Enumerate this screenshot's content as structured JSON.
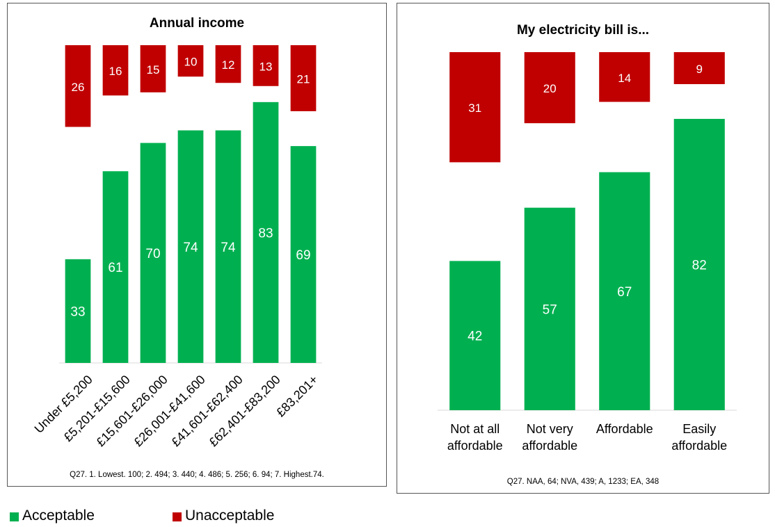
{
  "colors": {
    "acceptable": "#00B050",
    "unacceptable": "#C00000"
  },
  "legend": {
    "items": [
      {
        "label": "Acceptable",
        "color": "#00B050"
      },
      {
        "label": "Unacceptable",
        "color": "#C00000"
      }
    ]
  },
  "chart_data": [
    {
      "type": "bar",
      "title": "Annual income",
      "note": "Q27.  1. Lowest. 100; 2. 494; 3. 440; 4. 486; 5. 256; 6. 94; 7. Highest.74.",
      "categories": [
        "Under £5,200",
        "£5,201-£15,600",
        "£15,601-£26,000",
        "£26,001-£41,600",
        "£41,601-£62,400",
        "£62,401-£83,200",
        "£83,201+"
      ],
      "series": [
        {
          "name": "Acceptable",
          "values": [
            33,
            61,
            70,
            74,
            74,
            83,
            69
          ]
        },
        {
          "name": "Unacceptable",
          "values": [
            26,
            16,
            15,
            10,
            12,
            13,
            21
          ]
        }
      ]
    },
    {
      "type": "bar",
      "title": "My electricity bill is...",
      "note": "Q27.  NAA, 64; NVA, 439;  A, 1233;  EA, 348",
      "categories": [
        [
          "Not at all",
          "affordable"
        ],
        [
          "Not very",
          "affordable"
        ],
        [
          "Affordable"
        ],
        [
          "Easily",
          "affordable"
        ]
      ],
      "series": [
        {
          "name": "Acceptable",
          "values": [
            42,
            57,
            67,
            82
          ]
        },
        {
          "name": "Unacceptable",
          "values": [
            31,
            20,
            14,
            9
          ]
        }
      ]
    }
  ]
}
